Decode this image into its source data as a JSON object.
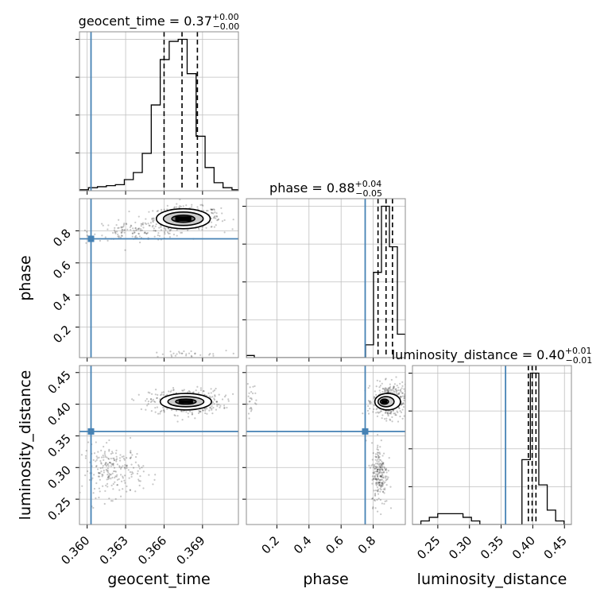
{
  "chart_data": {
    "type": "corner",
    "colors": {
      "truth": "#4682b4",
      "hist": "#000000",
      "grid": "#bfbfbf",
      "frame": "#8c8c8c",
      "contour_fill": [
        "#ffffff",
        "#cccccc",
        "#737373",
        "#000000"
      ]
    },
    "parameters": [
      {
        "name": "geocent_time",
        "label": "geocent_time",
        "title_text": "geocent_time = 0.37",
        "title_sup": "+0.00",
        "title_sub": "−0.00",
        "truth": 0.3603,
        "range": [
          0.3594,
          0.3718
        ],
        "ticks": [
          "0.360",
          "0.363",
          "0.366",
          "0.369"
        ],
        "tick_values": [
          0.36,
          0.363,
          0.366,
          0.369
        ],
        "quantiles": [
          0.366,
          0.3674,
          0.3686
        ]
      },
      {
        "name": "phase",
        "label": "phase",
        "title_text": "phase = 0.88",
        "title_sup": "+0.04",
        "title_sub": "−0.05",
        "truth": 0.75,
        "range": [
          0.01,
          1.0
        ],
        "ticks": [
          "0.2",
          "0.4",
          "0.6",
          "0.8"
        ],
        "tick_values": [
          0.2,
          0.4,
          0.6,
          0.8
        ],
        "quantiles": [
          0.83,
          0.88,
          0.92
        ]
      },
      {
        "name": "luminosity_distance",
        "label": "luminosity_distance",
        "title_text": "luminosity_distance = 0.40",
        "title_sup": "+0.01",
        "title_sub": "−0.01",
        "truth": 0.357,
        "range": [
          0.21,
          0.461
        ],
        "ticks": [
          "0.25",
          "0.30",
          "0.35",
          "0.40",
          "0.45"
        ],
        "tick_values": [
          0.25,
          0.3,
          0.35,
          0.4,
          0.45
        ],
        "quantiles": [
          0.393,
          0.399,
          0.405
        ]
      }
    ],
    "histograms": [
      {
        "param": "geocent_time",
        "bins": [
          0.3594,
          0.3601,
          0.3608,
          0.3615,
          0.3622,
          0.3629,
          0.3636,
          0.3643,
          0.365,
          0.3657,
          0.3664,
          0.3671,
          0.3678,
          0.3685,
          0.3692,
          0.3699,
          0.3706,
          0.3713,
          0.3718
        ],
        "counts": [
          1,
          3,
          4,
          5,
          6,
          11,
          18,
          37,
          85,
          130,
          148,
          150,
          116,
          54,
          23,
          8,
          3,
          1
        ]
      },
      {
        "param": "phase",
        "bins": [
          0.01,
          0.0595,
          0.109,
          0.1585,
          0.208,
          0.2575,
          0.307,
          0.3565,
          0.406,
          0.4555,
          0.505,
          0.5545,
          0.604,
          0.6535,
          0.703,
          0.7525,
          0.802,
          0.8515,
          0.901,
          0.9505,
          1.0
        ],
        "counts": [
          1,
          0,
          0,
          0,
          0,
          0,
          0,
          0,
          0,
          0,
          0,
          0,
          0,
          0,
          0,
          6,
          40,
          71,
          52,
          11
        ]
      },
      {
        "param": "luminosity_distance",
        "bins": [
          0.21,
          0.2233,
          0.2366,
          0.2499,
          0.2632,
          0.2765,
          0.2898,
          0.3031,
          0.3164,
          0.3297,
          0.343,
          0.3563,
          0.3696,
          0.3829,
          0.3962,
          0.4095,
          0.4228,
          0.4361,
          0.4494,
          0.461
        ],
        "counts": [
          0,
          1,
          2,
          3,
          3,
          3,
          2,
          1,
          0,
          0,
          0,
          0,
          0,
          18,
          42,
          11,
          4,
          1,
          0
        ]
      }
    ],
    "scatter_clusters": [
      {
        "x": "geocent_time",
        "y": "phase",
        "clusters": [
          {
            "cx": 0.3678,
            "cy": 0.88,
            "sx": 0.0013,
            "sy": 0.035,
            "n": 420
          },
          {
            "cx": 0.364,
            "cy": 0.8,
            "sx": 0.0018,
            "sy": 0.03,
            "n": 140
          },
          {
            "cx": 0.3672,
            "cy": 0.03,
            "sx": 0.0018,
            "sy": 0.012,
            "n": 30
          }
        ],
        "contours": [
          {
            "cx": 0.3675,
            "cy": 0.875,
            "rx": 0.0009,
            "ry": 0.022
          },
          {
            "cx": 0.3675,
            "cy": 0.875,
            "rx": 0.00155,
            "ry": 0.042
          },
          {
            "cx": 0.3675,
            "cy": 0.875,
            "rx": 0.0021,
            "ry": 0.062
          }
        ]
      },
      {
        "x": "geocent_time",
        "y": "luminosity_distance",
        "clusters": [
          {
            "cx": 0.3677,
            "cy": 0.404,
            "sx": 0.0014,
            "sy": 0.01,
            "n": 420
          },
          {
            "cx": 0.362,
            "cy": 0.295,
            "sx": 0.0012,
            "sy": 0.02,
            "n": 230
          }
        ],
        "contours": [
          {
            "cx": 0.3677,
            "cy": 0.404,
            "rx": 0.0008,
            "ry": 0.004
          },
          {
            "cx": 0.3677,
            "cy": 0.404,
            "rx": 0.0014,
            "ry": 0.008
          },
          {
            "cx": 0.3677,
            "cy": 0.404,
            "rx": 0.002,
            "ry": 0.013
          }
        ]
      },
      {
        "x": "phase",
        "y": "luminosity_distance",
        "clusters": [
          {
            "cx": 0.9,
            "cy": 0.405,
            "sx": 0.05,
            "sy": 0.013,
            "n": 420
          },
          {
            "cx": 0.84,
            "cy": 0.29,
            "sx": 0.025,
            "sy": 0.025,
            "n": 220
          },
          {
            "cx": 0.04,
            "cy": 0.41,
            "sx": 0.02,
            "sy": 0.012,
            "n": 25
          }
        ],
        "contours": [
          {
            "cx": 0.87,
            "cy": 0.404,
            "rx": 0.025,
            "ry": 0.004
          },
          {
            "cx": 0.88,
            "cy": 0.404,
            "rx": 0.05,
            "ry": 0.008
          },
          {
            "cx": 0.89,
            "cy": 0.404,
            "rx": 0.08,
            "ry": 0.013
          }
        ]
      }
    ]
  }
}
